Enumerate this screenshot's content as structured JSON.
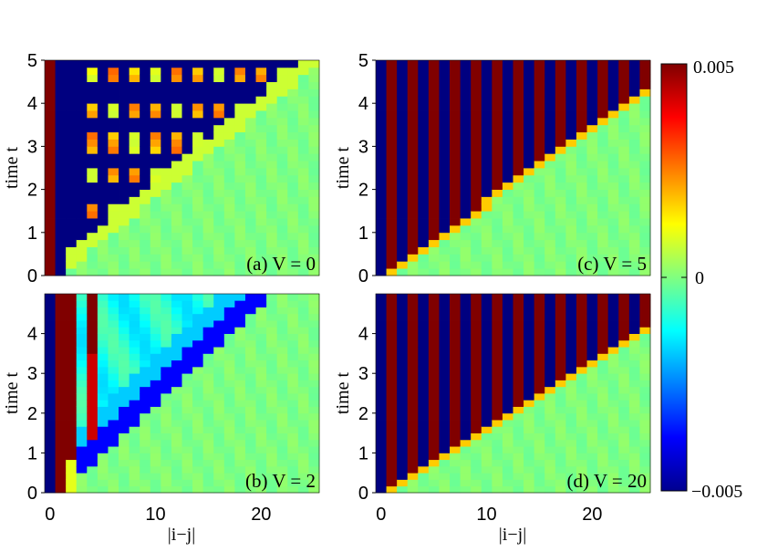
{
  "chart_data": {
    "type": "heatmap",
    "colormap": "jet",
    "colorbar": {
      "min": -0.005,
      "max": 0.005,
      "ticks": [
        "0.005",
        "0",
        "−0.005"
      ]
    },
    "panels": [
      {
        "id": "a",
        "label": "(a) V = 0",
        "V": 0,
        "velocity": 5.0,
        "x_range": [
          0,
          25
        ],
        "y_range": [
          0,
          5
        ],
        "xticks": [],
        "yticks": [
          "0",
          "1",
          "2",
          "3",
          "4",
          "5"
        ],
        "xlabel": "",
        "ylabel": "time t"
      },
      {
        "id": "c",
        "label": "(c) V = 5",
        "V": 5,
        "velocity": 5.7,
        "x_range": [
          0,
          25
        ],
        "y_range": [
          0,
          5
        ],
        "xticks": [],
        "yticks": [
          "0",
          "1",
          "2",
          "3",
          "4",
          "5"
        ],
        "xlabel": "",
        "ylabel": "time t"
      },
      {
        "id": "b",
        "label": "(b) V = 2",
        "V": 2,
        "velocity": 4.0,
        "x_range": [
          0,
          25
        ],
        "y_range": [
          0,
          5
        ],
        "xticks": [
          "0",
          "10",
          "20"
        ],
        "yticks": [
          "0",
          "1",
          "2",
          "3",
          "4"
        ],
        "xlabel": "|i−j|",
        "ylabel": "time t"
      },
      {
        "id": "d",
        "label": "(d) V = 20",
        "V": 20,
        "velocity": 6.0,
        "x_range": [
          0,
          25
        ],
        "y_range": [
          0,
          5
        ],
        "xticks": [
          "0",
          "10",
          "20"
        ],
        "yticks": [
          "0",
          "1",
          "2",
          "3",
          "4"
        ],
        "xlabel": "|i−j|",
        "ylabel": "time t"
      }
    ]
  }
}
